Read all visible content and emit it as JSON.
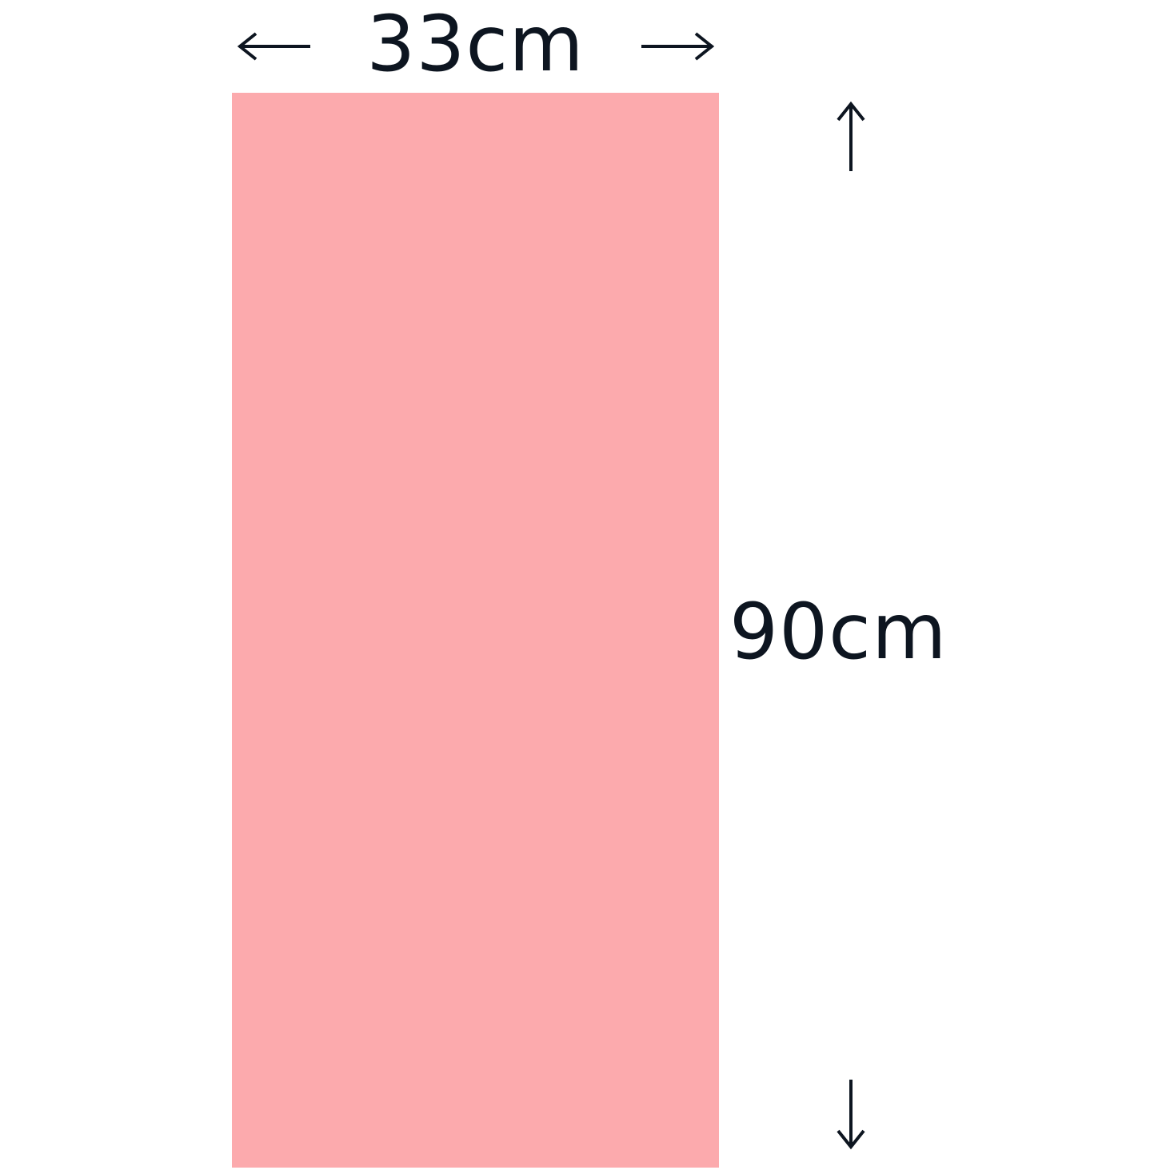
{
  "dimensions": {
    "width_label": "33cm",
    "height_label": "90cm"
  },
  "colors": {
    "panel_fill": "#fcaaad",
    "ink": "#0d1520"
  },
  "icons": {
    "width_left": "arrow-left-icon",
    "width_right": "arrow-right-icon",
    "height_top": "arrow-up-icon",
    "height_bottom": "arrow-down-icon"
  }
}
